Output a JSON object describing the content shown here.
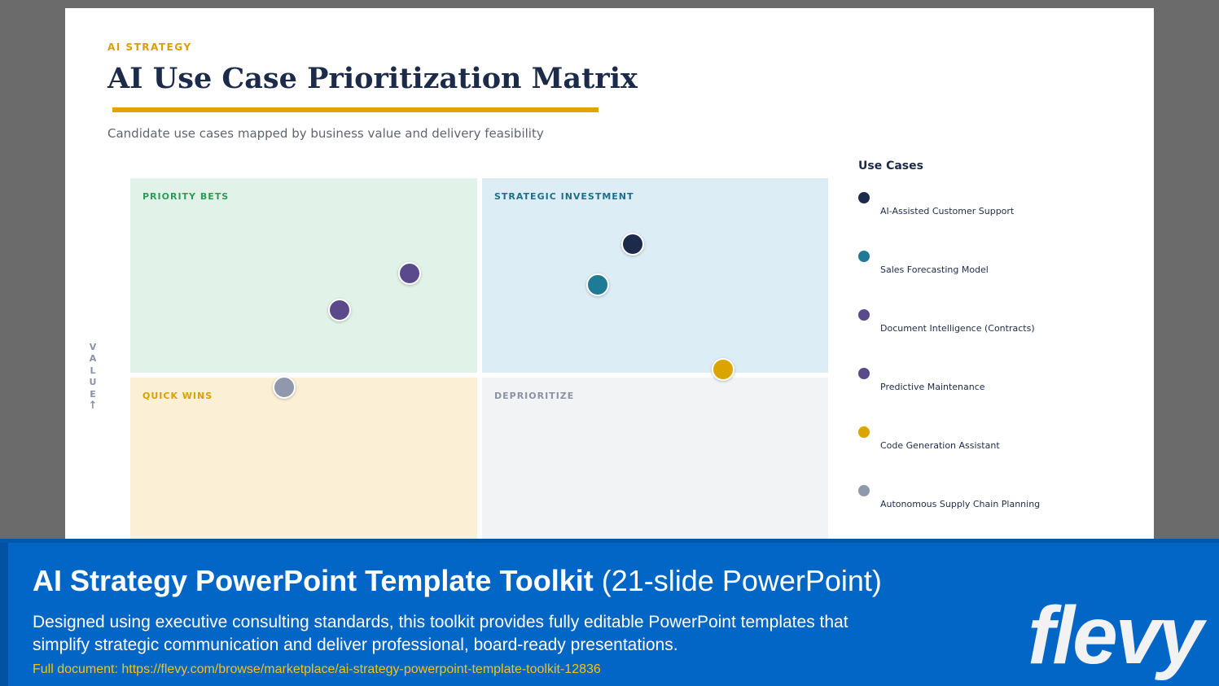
{
  "slide": {
    "eyebrow": "AI STRATEGY",
    "title": "AI Use Case Prioritization Matrix",
    "subtitle": "Candidate use cases mapped by business value and delivery feasibility",
    "y_axis_label": [
      "V",
      "A",
      "L",
      "U",
      "E"
    ],
    "y_axis_arrow": "↑",
    "quadrants": {
      "priority_bets": {
        "label": "PRIORITY BETS",
        "color": "#2e9b58"
      },
      "strategic_investment": {
        "label": "STRATEGIC INVESTMENT",
        "color": "#1f6f8b"
      },
      "quick_wins": {
        "label": "QUICK WINS",
        "color": "#d9a000"
      },
      "deprioritize": {
        "label": "DEPRIORITIZE",
        "color": "#8a93a6"
      }
    },
    "legend": {
      "title": "Use Cases",
      "items": [
        {
          "label": "AI-Assisted Customer Support",
          "color": "#1c2b4a"
        },
        {
          "label": "Sales Forecasting Model",
          "color": "#1f7a96"
        },
        {
          "label": "Document Intelligence (Contracts)",
          "color": "#5a4a8c"
        },
        {
          "label": "Predictive Maintenance",
          "color": "#5a4a8c"
        },
        {
          "label": "Code Generation Assistant",
          "color": "#dca400"
        },
        {
          "label": "Autonomous Supply Chain Planning",
          "color": "#9098ab"
        }
      ]
    }
  },
  "chart_data": {
    "type": "scatter",
    "title": "AI Use Case Prioritization Matrix",
    "ylabel": "VALUE",
    "grid": false,
    "legend_placement": "right",
    "points": [
      {
        "name": "AI-Assisted Customer Support",
        "quadrant": "STRATEGIC INVESTMENT",
        "x": 0.72,
        "y": 0.82,
        "color": "#1c2b4a"
      },
      {
        "name": "Sales Forecasting Model",
        "quadrant": "STRATEGIC INVESTMENT",
        "x": 0.67,
        "y": 0.71,
        "color": "#1f7a96"
      },
      {
        "name": "Document Intelligence (Contracts)",
        "quadrant": "PRIORITY BETS",
        "x": 0.4,
        "y": 0.74,
        "color": "#5a4a8c"
      },
      {
        "name": "Predictive Maintenance",
        "quadrant": "PRIORITY BETS",
        "x": 0.3,
        "y": 0.64,
        "color": "#5a4a8c"
      },
      {
        "name": "Code Generation Assistant",
        "quadrant": "DEPRIORITIZE",
        "x": 0.85,
        "y": 0.48,
        "color": "#dca400"
      },
      {
        "name": "Autonomous Supply Chain Planning",
        "quadrant": "QUICK WINS",
        "x": 0.22,
        "y": 0.43,
        "color": "#9098ab"
      }
    ]
  },
  "banner": {
    "title_bold": "AI Strategy PowerPoint Template Toolkit",
    "title_rest": " (21-slide PowerPoint)",
    "description": "Designed using executive consulting standards, this toolkit provides fully editable PowerPoint templates that simplify strategic communication and deliver professional, board-ready presentations.",
    "link": "Full document: https://flevy.com/browse/marketplace/ai-strategy-powerpoint-template-toolkit-12836",
    "brand": "flevy"
  }
}
